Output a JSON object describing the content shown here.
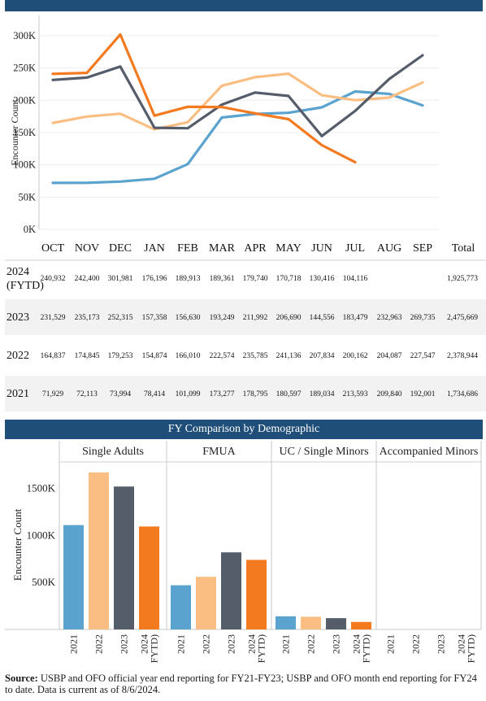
{
  "header": {
    "section2_title": "FY Comparison by Demographic"
  },
  "chart_data": [
    {
      "type": "line",
      "ylabel": "Encounter Count",
      "ylim": [
        0,
        310000
      ],
      "yticks": [
        0,
        50000,
        100000,
        150000,
        200000,
        250000,
        300000
      ],
      "ytick_labels": [
        "0K",
        "50K",
        "100K",
        "150K",
        "200K",
        "250K",
        "300K"
      ],
      "categories": [
        "OCT",
        "NOV",
        "DEC",
        "JAN",
        "FEB",
        "MAR",
        "APR",
        "MAY",
        "JUN",
        "JUL",
        "AUG",
        "SEP"
      ],
      "total_label": "Total",
      "grid": true,
      "series": [
        {
          "name": "2024 (FYTD)",
          "color": "#f47a20",
          "values": [
            240932,
            242400,
            301981,
            176196,
            189913,
            189361,
            179740,
            170718,
            130416,
            104116,
            null,
            null
          ],
          "display": [
            "240,932",
            "242,400",
            "301,981",
            "176,196",
            "189,913",
            "189,361",
            "179,740",
            "170,718",
            "130,416",
            "104,116",
            "",
            ""
          ],
          "total": "1,925,773"
        },
        {
          "name": "2023",
          "color": "#555d6b",
          "values": [
            231529,
            235173,
            252315,
            157358,
            156630,
            193249,
            211992,
            206690,
            144556,
            183479,
            232963,
            269735
          ],
          "display": [
            "231,529",
            "235,173",
            "252,315",
            "157,358",
            "156,630",
            "193,249",
            "211,992",
            "206,690",
            "144,556",
            "183,479",
            "232,963",
            "269,735"
          ],
          "total": "2,475,669"
        },
        {
          "name": "2022",
          "color": "#fbbe82",
          "values": [
            164837,
            174845,
            179253,
            154874,
            166010,
            222574,
            235785,
            241136,
            207834,
            200162,
            204087,
            227547
          ],
          "display": [
            "164,837",
            "174,845",
            "179,253",
            "154,874",
            "166,010",
            "222,574",
            "235,785",
            "241,136",
            "207,834",
            "200,162",
            "204,087",
            "227,547"
          ],
          "total": "2,378,944"
        },
        {
          "name": "2021",
          "color": "#5ba3cf",
          "values": [
            71929,
            72113,
            73994,
            78414,
            101099,
            173277,
            178795,
            180597,
            189034,
            213593,
            209840,
            192001
          ],
          "display": [
            "71,929",
            "72,113",
            "73,994",
            "78,414",
            "101,099",
            "173,277",
            "178,795",
            "180,597",
            "189,034",
            "213,593",
            "209,840",
            "192,001"
          ],
          "total": "1,734,686"
        }
      ]
    },
    {
      "type": "bar",
      "ylabel": "Encounter Count",
      "ylim": [
        0,
        1730000
      ],
      "yticks": [
        500000,
        1000000,
        1500000
      ],
      "ytick_labels": [
        "500K",
        "1000K",
        "1500K"
      ],
      "x_labels": [
        "2021",
        "2022",
        "2023",
        "2024\nFYTD)"
      ],
      "groups": [
        {
          "name": "Single Adults",
          "values": [
            1110000,
            1670000,
            1520000,
            1095000
          ]
        },
        {
          "name": "FMUA",
          "values": [
            470000,
            560000,
            820000,
            740000
          ]
        },
        {
          "name": "UC / Single Minors",
          "values": [
            140000,
            135000,
            120000,
            80000
          ]
        },
        {
          "name": "Accompanied Minors",
          "values": [
            0,
            0,
            0,
            0
          ]
        }
      ],
      "colors": [
        "#5ba3cf",
        "#fbbe82",
        "#555d6b",
        "#f47a20"
      ]
    }
  ],
  "source": {
    "label": "Source:",
    "text": " USBP and OFO official year end reporting for FY21-FY23; USBP and OFO month end reporting for FY24 to date. Data is current as of 8/6/2024."
  }
}
